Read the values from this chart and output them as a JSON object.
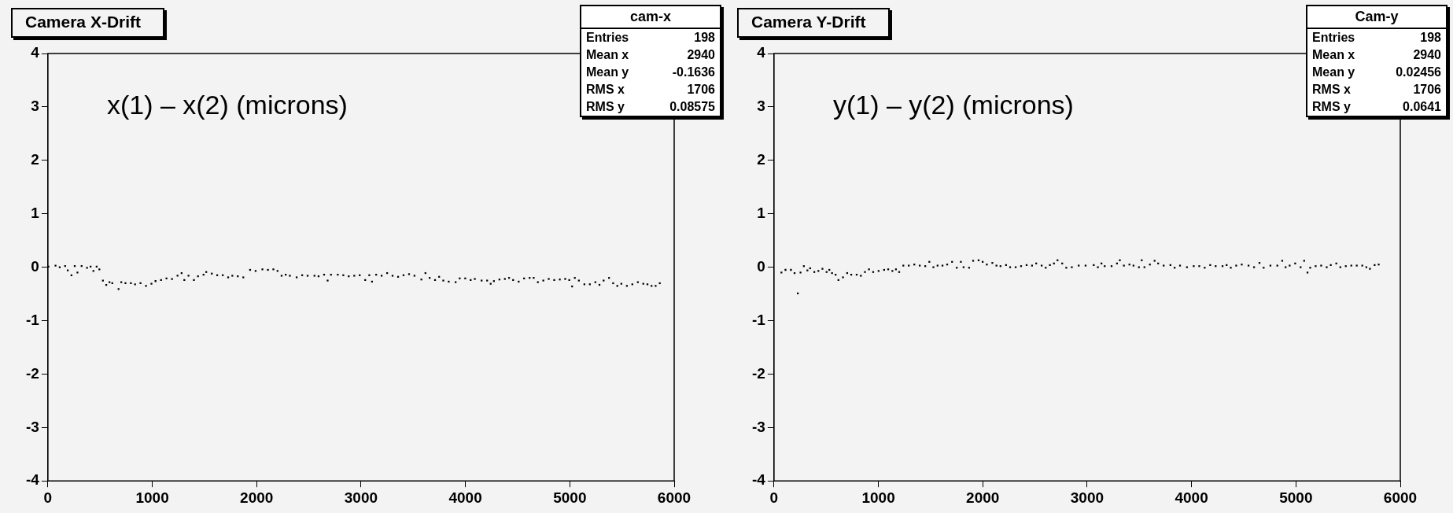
{
  "chart_data": [
    {
      "type": "scatter",
      "title": "Camera X-Drift",
      "ylabel": "x(1) – x(2) (microns)",
      "annotations": [
        "cam-x",
        "Entries 198",
        "Mean x 2940",
        "Mean y -0.1636",
        "RMS x 1706",
        "RMS y 0.08575"
      ],
      "xlim": [
        0,
        6000
      ],
      "xticks": [
        0,
        1000,
        2000,
        3000,
        4000,
        5000,
        6000
      ],
      "ylim": [
        -4,
        4
      ],
      "yticks": [
        -4,
        -3,
        -2,
        -1,
        0,
        1,
        2,
        3,
        4
      ],
      "grid": false,
      "legend": false,
      "marker": "square",
      "series": [
        {
          "color": "#000000",
          "x": [
            5,
            73,
            113,
            165,
            190,
            226,
            257,
            283,
            323,
            375,
            409,
            436,
            467,
            493,
            527,
            559,
            590,
            617,
            677,
            703,
            743,
            795,
            835,
            887,
            940,
            992,
            1031,
            1084,
            1136,
            1189,
            1242,
            1281,
            1307,
            1347,
            1399,
            1438,
            1491,
            1517,
            1570,
            1622,
            1675,
            1727,
            1767,
            1819,
            1872,
            1937,
            1990,
            2055,
            2108,
            2160,
            2200,
            2239,
            2278,
            2318,
            2383,
            2436,
            2488,
            2554,
            2593,
            2646,
            2680,
            2712,
            2777,
            2830,
            2882,
            2935,
            2987,
            3040,
            3079,
            3105,
            3145,
            3197,
            3250,
            3302,
            3355,
            3407,
            3460,
            3512,
            3578,
            3617,
            3657,
            3709,
            3748,
            3788,
            3840,
            3906,
            3945,
            3998,
            4050,
            4090,
            4155,
            4208,
            4242,
            4273,
            4326,
            4378,
            4418,
            4457,
            4510,
            4562,
            4615,
            4654,
            4694,
            4746,
            4798,
            4851,
            4904,
            4956,
            4995,
            5022,
            5048,
            5087,
            5140,
            5192,
            5245,
            5284,
            5324,
            5376,
            5415,
            5455,
            5494,
            5547,
            5599,
            5652,
            5704,
            5744,
            5783,
            5822,
            5862
          ],
          "values": [
            0.01,
            0.03,
            0.0,
            0.02,
            -0.06,
            -0.15,
            0.02,
            -0.1,
            0.02,
            -0.01,
            0.01,
            -0.07,
            0.01,
            -0.04,
            -0.25,
            -0.33,
            -0.28,
            -0.3,
            -0.41,
            -0.28,
            -0.3,
            -0.3,
            -0.32,
            -0.3,
            -0.35,
            -0.31,
            -0.26,
            -0.24,
            -0.21,
            -0.22,
            -0.16,
            -0.11,
            -0.24,
            -0.16,
            -0.24,
            -0.17,
            -0.14,
            -0.09,
            -0.12,
            -0.15,
            -0.15,
            -0.19,
            -0.16,
            -0.17,
            -0.19,
            -0.05,
            -0.07,
            -0.04,
            -0.05,
            -0.04,
            -0.07,
            -0.16,
            -0.14,
            -0.16,
            -0.19,
            -0.15,
            -0.16,
            -0.16,
            -0.17,
            -0.14,
            -0.25,
            -0.14,
            -0.14,
            -0.15,
            -0.17,
            -0.16,
            -0.15,
            -0.24,
            -0.15,
            -0.27,
            -0.14,
            -0.16,
            -0.11,
            -0.16,
            -0.18,
            -0.15,
            -0.13,
            -0.16,
            -0.23,
            -0.11,
            -0.2,
            -0.24,
            -0.18,
            -0.25,
            -0.27,
            -0.28,
            -0.21,
            -0.21,
            -0.24,
            -0.22,
            -0.25,
            -0.25,
            -0.31,
            -0.26,
            -0.23,
            -0.22,
            -0.2,
            -0.24,
            -0.27,
            -0.21,
            -0.2,
            -0.2,
            -0.28,
            -0.25,
            -0.22,
            -0.24,
            -0.23,
            -0.22,
            -0.24,
            -0.36,
            -0.2,
            -0.25,
            -0.32,
            -0.32,
            -0.28,
            -0.33,
            -0.25,
            -0.2,
            -0.3,
            -0.35,
            -0.31,
            -0.35,
            -0.32,
            -0.28,
            -0.31,
            -0.32,
            -0.35,
            -0.35,
            -0.3
          ]
        }
      ]
    },
    {
      "type": "scatter",
      "title": "Camera Y-Drift",
      "ylabel": "y(1) – y(2) (microns)",
      "annotations": [
        "Cam-y",
        "Entries 198",
        "Mean x 2940",
        "Mean y 0.02456",
        "RMS x 1706",
        "RMS y 0.0641"
      ],
      "xlim": [
        0,
        6000
      ],
      "xticks": [
        0,
        1000,
        2000,
        3000,
        4000,
        5000,
        6000
      ],
      "ylim": [
        -4,
        4
      ],
      "yticks": [
        -4,
        -3,
        -2,
        -1,
        0,
        1,
        2,
        3,
        4
      ],
      "grid": false,
      "legend": false,
      "marker": "square",
      "series": [
        {
          "color": "#000000",
          "x": [
            71,
            110,
            162,
            197,
            228,
            254,
            286,
            320,
            346,
            386,
            425,
            464,
            504,
            530,
            556,
            590,
            617,
            661,
            701,
            740,
            792,
            832,
            871,
            910,
            950,
            1002,
            1055,
            1094,
            1134,
            1168,
            1199,
            1239,
            1291,
            1344,
            1396,
            1449,
            1488,
            1527,
            1567,
            1614,
            1659,
            1706,
            1751,
            1790,
            1816,
            1869,
            1908,
            1960,
            1999,
            2039,
            2092,
            2131,
            2170,
            2223,
            2262,
            2315,
            2367,
            2420,
            2472,
            2512,
            2564,
            2603,
            2643,
            2682,
            2716,
            2761,
            2800,
            2853,
            2919,
            2985,
            3063,
            3103,
            3137,
            3168,
            3234,
            3286,
            3313,
            3352,
            3405,
            3444,
            3496,
            3523,
            3549,
            3601,
            3646,
            3680,
            3733,
            3798,
            3838,
            3890,
            3956,
            4021,
            4074,
            4126,
            4179,
            4231,
            4297,
            4336,
            4376,
            4428,
            4481,
            4546,
            4599,
            4651,
            4691,
            4756,
            4822,
            4869,
            4901,
            4940,
            4993,
            5045,
            5079,
            5111,
            5137,
            5189,
            5242,
            5295,
            5334,
            5387,
            5426,
            5478,
            5531,
            5583,
            5636,
            5675,
            5709,
            5754,
            5793
          ],
          "values": [
            -0.1,
            -0.05,
            -0.05,
            -0.11,
            -0.49,
            -0.1,
            0.02,
            -0.06,
            -0.02,
            -0.09,
            -0.07,
            -0.03,
            -0.09,
            -0.05,
            -0.11,
            -0.14,
            -0.24,
            -0.19,
            -0.11,
            -0.14,
            -0.14,
            -0.16,
            -0.09,
            -0.04,
            -0.09,
            -0.07,
            -0.05,
            -0.04,
            -0.07,
            -0.04,
            -0.09,
            0.03,
            0.03,
            0.05,
            0.03,
            0.02,
            0.1,
            0.0,
            0.03,
            0.03,
            0.05,
            0.1,
            -0.01,
            0.1,
            0.0,
            -0.01,
            0.12,
            0.13,
            0.1,
            0.05,
            0.08,
            0.03,
            0.02,
            0.04,
            0.0,
            0.0,
            0.02,
            0.04,
            0.03,
            0.07,
            0.03,
            -0.01,
            0.04,
            0.07,
            0.13,
            0.07,
            -0.01,
            0.0,
            0.03,
            0.03,
            0.04,
            0.0,
            0.07,
            0.02,
            0.02,
            0.07,
            0.13,
            0.03,
            0.05,
            0.03,
            0.0,
            0.13,
            0.0,
            0.05,
            0.12,
            0.07,
            0.03,
            0.04,
            -0.01,
            0.03,
            0.0,
            0.02,
            0.02,
            -0.01,
            0.04,
            0.02,
            0.02,
            0.04,
            -0.01,
            0.03,
            0.05,
            0.03,
            0.0,
            0.08,
            -0.01,
            0.03,
            0.03,
            0.12,
            0.0,
            0.03,
            0.07,
            0.0,
            0.12,
            -0.1,
            -0.01,
            0.02,
            0.03,
            0.0,
            0.04,
            0.07,
            0.0,
            0.02,
            0.03,
            0.03,
            0.03,
            0.0,
            -0.03,
            0.04,
            0.05
          ]
        }
      ]
    }
  ]
}
